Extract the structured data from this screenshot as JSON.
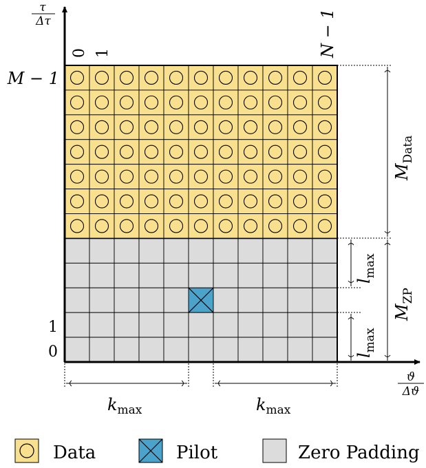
{
  "grid": {
    "columns": 11,
    "rows": 12,
    "data_rows": 7,
    "zp_rows": 5,
    "pilot": {
      "column": 5,
      "row_from_bottom": 2
    },
    "colors": {
      "data": "#f8e08e",
      "zero_padding": "#dcdcdc",
      "pilot": "#4ba3cc",
      "line": "#000000"
    }
  },
  "axes": {
    "y_num": "τ",
    "y_den": "Δτ",
    "x_num": "ϑ",
    "x_den": "Δϑ"
  },
  "col_labels": {
    "first": "0",
    "second": "1",
    "last": "N − 1"
  },
  "row_labels": {
    "top": "M − 1",
    "r1": "1",
    "r0": "0"
  },
  "annotations": {
    "m_data_base": "M",
    "m_data_sub": "Data",
    "m_zp_base": "M",
    "m_zp_sub": "ZP",
    "l_base": "l",
    "l_sub": "max",
    "k_base": "k",
    "k_sub": "max"
  },
  "legend": {
    "data": "Data",
    "pilot": "Pilot",
    "zero_padding": "Zero Padding"
  }
}
